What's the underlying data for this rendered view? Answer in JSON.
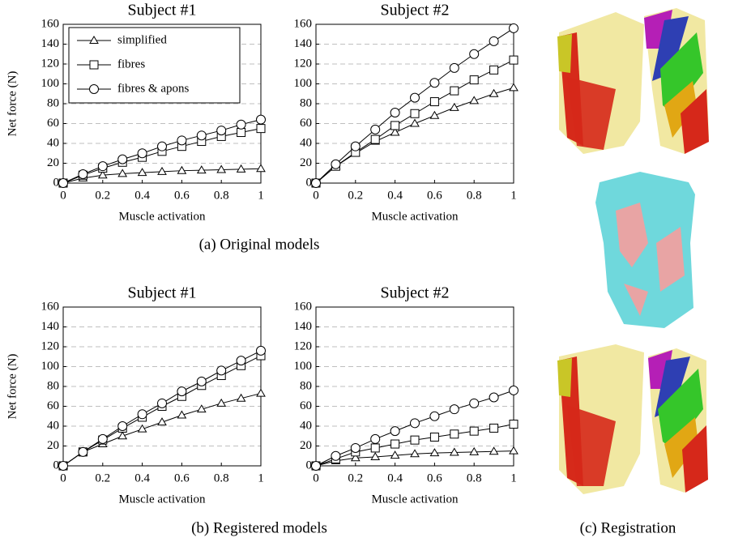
{
  "chart_data": [
    {
      "type": "line",
      "title": "Subject #1",
      "xlabel": "Muscle activation",
      "ylabel": "Net force (N)",
      "x": [
        0,
        0.1,
        0.2,
        0.3,
        0.4,
        0.5,
        0.6,
        0.7,
        0.8,
        0.9,
        1
      ],
      "xlim": [
        0,
        1
      ],
      "ylim": [
        0,
        160
      ],
      "xticks": [
        0,
        0.2,
        0.4,
        0.6,
        0.8,
        1
      ],
      "yticks": [
        0,
        20,
        40,
        60,
        80,
        100,
        120,
        140,
        160
      ],
      "grid": true,
      "legend": "upper left",
      "series": [
        {
          "name": "simplified",
          "marker": "triangle",
          "color": "#000000",
          "values": [
            0,
            5,
            8,
            9.5,
            10.5,
            11.5,
            12.5,
            13,
            13.5,
            14,
            14.5
          ]
        },
        {
          "name": "fibres",
          "marker": "square",
          "color": "#000000",
          "values": [
            0,
            8,
            15,
            21,
            26,
            32,
            37,
            42,
            47,
            51,
            55
          ]
        },
        {
          "name": "fibres & apons",
          "marker": "circle",
          "color": "#000000",
          "values": [
            0,
            9,
            17,
            24,
            30,
            37,
            43,
            48,
            53,
            59,
            64
          ]
        }
      ]
    },
    {
      "type": "line",
      "title": "Subject #2",
      "xlabel": "Muscle activation",
      "x": [
        0,
        0.1,
        0.2,
        0.3,
        0.4,
        0.5,
        0.6,
        0.7,
        0.8,
        0.9,
        1
      ],
      "xlim": [
        0,
        1
      ],
      "ylim": [
        0,
        160
      ],
      "xticks": [
        0,
        0.2,
        0.4,
        0.6,
        0.8,
        1
      ],
      "yticks": [
        0,
        20,
        40,
        60,
        80,
        100,
        120,
        140,
        160
      ],
      "grid": true,
      "series": [
        {
          "marker": "triangle",
          "color": "#000000",
          "values": [
            0,
            17,
            30,
            42,
            51,
            60,
            68,
            76,
            83,
            90,
            96
          ]
        },
        {
          "marker": "square",
          "color": "#000000",
          "values": [
            0,
            17,
            31,
            44,
            58,
            70,
            82,
            93,
            104,
            114,
            124
          ]
        },
        {
          "marker": "circle",
          "color": "#000000",
          "values": [
            0,
            19,
            37,
            54,
            71,
            86,
            101,
            116,
            130,
            143,
            156
          ]
        }
      ]
    },
    {
      "type": "line",
      "title": "Subject #1",
      "xlabel": "Muscle activation",
      "ylabel": "Net force (N)",
      "x": [
        0,
        0.1,
        0.2,
        0.3,
        0.4,
        0.5,
        0.6,
        0.7,
        0.8,
        0.9,
        1
      ],
      "xlim": [
        0,
        1
      ],
      "ylim": [
        0,
        160
      ],
      "xticks": [
        0,
        0.2,
        0.4,
        0.6,
        0.8,
        1
      ],
      "yticks": [
        0,
        20,
        40,
        60,
        80,
        100,
        120,
        140,
        160
      ],
      "grid": true,
      "series": [
        {
          "marker": "triangle",
          "color": "#000000",
          "values": [
            0,
            14,
            22,
            30,
            37,
            44,
            51,
            57,
            63,
            68,
            73
          ]
        },
        {
          "marker": "square",
          "color": "#000000",
          "values": [
            0,
            14,
            26,
            38,
            49,
            60,
            70,
            81,
            91,
            101,
            111
          ]
        },
        {
          "marker": "circle",
          "color": "#000000",
          "values": [
            0,
            14,
            27,
            40,
            52,
            63,
            75,
            85,
            96,
            106,
            116
          ]
        }
      ]
    },
    {
      "type": "line",
      "title": "Subject #2",
      "xlabel": "Muscle activation",
      "x": [
        0,
        0.1,
        0.2,
        0.3,
        0.4,
        0.5,
        0.6,
        0.7,
        0.8,
        0.9,
        1
      ],
      "xlim": [
        0,
        1
      ],
      "ylim": [
        0,
        160
      ],
      "xticks": [
        0,
        0.2,
        0.4,
        0.6,
        0.8,
        1
      ],
      "yticks": [
        0,
        20,
        40,
        60,
        80,
        100,
        120,
        140,
        160
      ],
      "grid": true,
      "series": [
        {
          "marker": "triangle",
          "color": "#000000",
          "values": [
            0,
            5,
            8,
            9,
            10.5,
            12,
            13,
            13.5,
            14,
            14.5,
            15
          ]
        },
        {
          "marker": "square",
          "color": "#000000",
          "values": [
            0,
            7,
            14,
            18,
            22,
            26,
            29,
            32,
            35,
            38,
            42
          ]
        },
        {
          "marker": "circle",
          "color": "#000000",
          "values": [
            0,
            10,
            18,
            27,
            35,
            43,
            50,
            57,
            63,
            69,
            76
          ]
        }
      ]
    }
  ],
  "captions": [
    "(a) Original models",
    "(b) Registered models",
    "(c) Registration"
  ]
}
